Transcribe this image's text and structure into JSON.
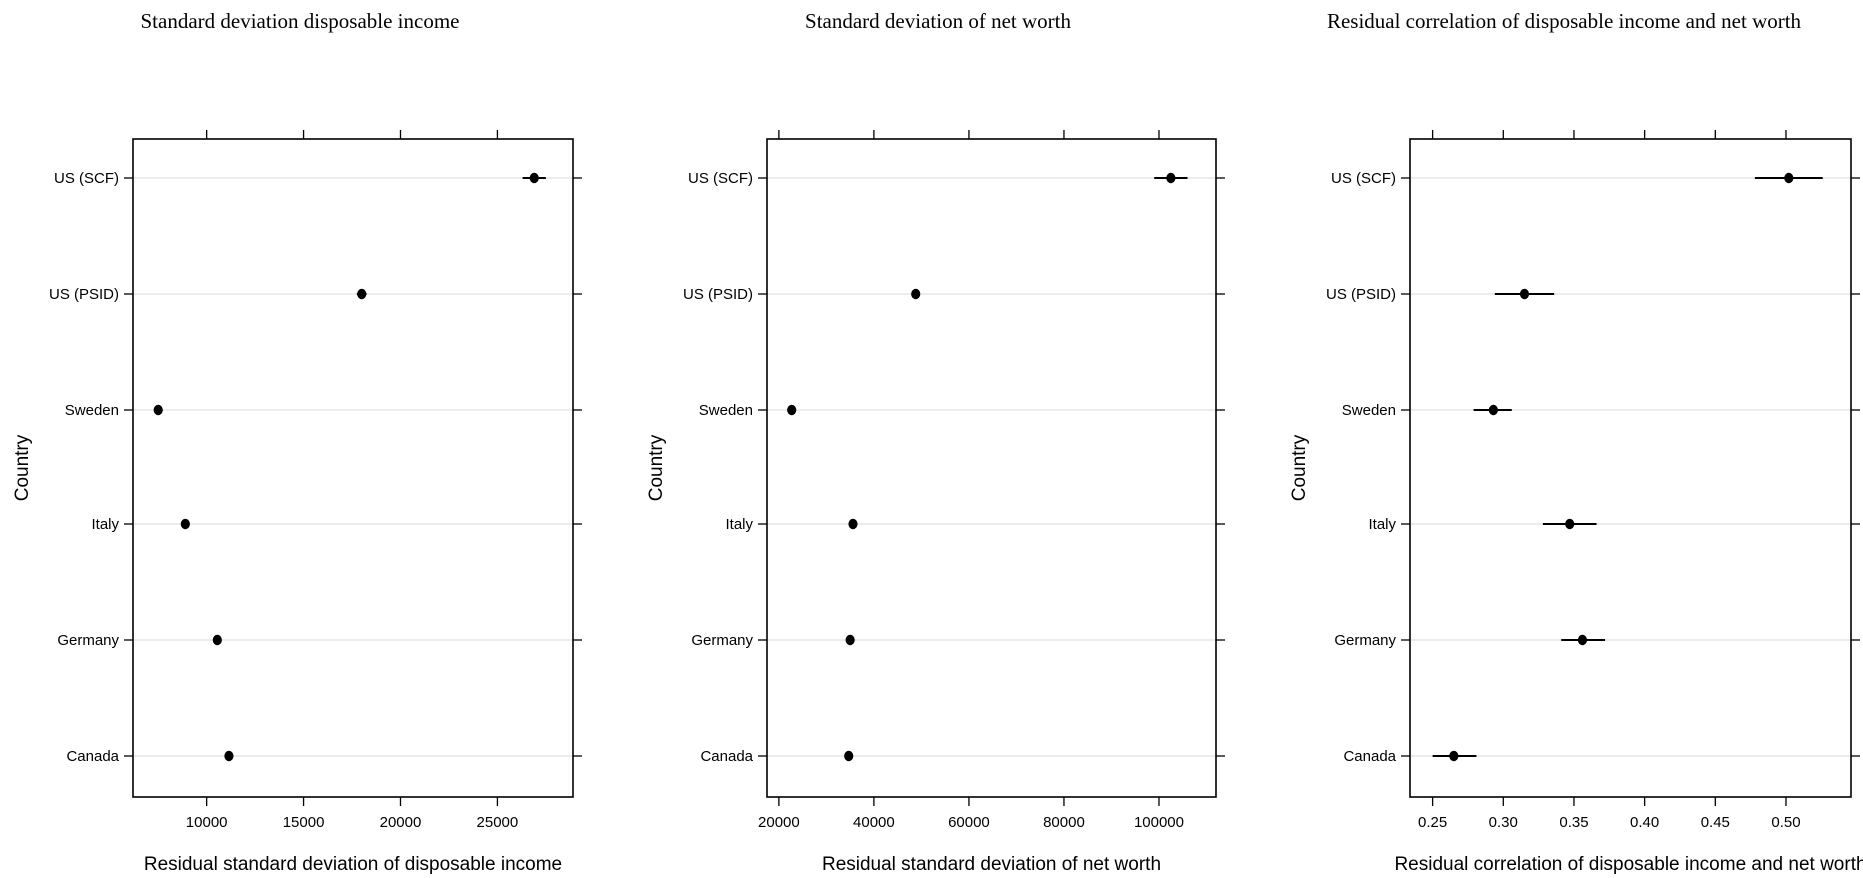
{
  "chart_data": [
    {
      "type": "scatter",
      "title": "Standard deviation disposable income",
      "xlabel": "Residual standard deviation of disposable income",
      "ylabel": "Country",
      "categories": [
        "US (SCF)",
        "US (PSID)",
        "Sweden",
        "Italy",
        "Germany",
        "Canada"
      ],
      "values": [
        26900,
        18000,
        7500,
        8900,
        10550,
        11150
      ],
      "ci_low": [
        26300,
        17750,
        7400,
        8800,
        10450,
        11050
      ],
      "ci_high": [
        27500,
        18250,
        7600,
        9000,
        10650,
        11250
      ],
      "xticks": [
        10000,
        15000,
        20000,
        25000
      ],
      "xlim": [
        6200,
        28900
      ],
      "grid": "horizontal",
      "colors": {
        "points": "#000000",
        "grid": "#e6e6e6"
      }
    },
    {
      "type": "scatter",
      "title": "Standard deviation of net worth",
      "xlabel": "Residual standard deviation of net worth",
      "ylabel": "Country",
      "categories": [
        "US (SCF)",
        "US (PSID)",
        "Sweden",
        "Italy",
        "Germany",
        "Canada"
      ],
      "values": [
        102500,
        48800,
        22700,
        35600,
        35000,
        34700
      ],
      "ci_low": [
        99000,
        48000,
        22400,
        35200,
        34700,
        34400
      ],
      "ci_high": [
        106000,
        49600,
        23000,
        36000,
        35300,
        35000
      ],
      "xticks": [
        20000,
        40000,
        60000,
        80000,
        100000
      ],
      "xlim": [
        17500,
        112000
      ],
      "grid": "horizontal",
      "colors": {
        "points": "#000000",
        "grid": "#e6e6e6"
      }
    },
    {
      "type": "scatter",
      "title": "Residual correlation of disposable income and net worth",
      "xlabel": "Residual correlation of disposable income and net worth",
      "ylabel": "Country",
      "categories": [
        "US (SCF)",
        "US (PSID)",
        "Sweden",
        "Italy",
        "Germany",
        "Canada"
      ],
      "values": [
        0.502,
        0.315,
        0.293,
        0.347,
        0.356,
        0.265
      ],
      "ci_low": [
        0.478,
        0.294,
        0.279,
        0.328,
        0.341,
        0.25
      ],
      "ci_high": [
        0.526,
        0.336,
        0.306,
        0.366,
        0.372,
        0.281
      ],
      "xticks": [
        0.25,
        0.3,
        0.35,
        0.4,
        0.45,
        0.5
      ],
      "xtick_labels": [
        "0.25",
        "0.30",
        "0.35",
        "0.40",
        "0.45",
        "0.50"
      ],
      "xlim": [
        0.234,
        0.546
      ],
      "grid": "horizontal",
      "colors": {
        "points": "#000000",
        "grid": "#e6e6e6"
      }
    }
  ]
}
